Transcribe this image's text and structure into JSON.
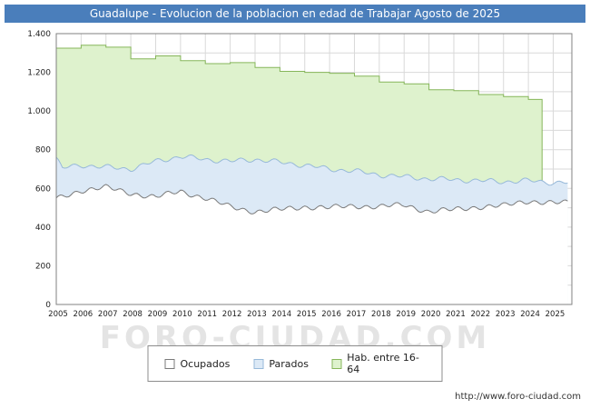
{
  "chart_data": {
    "type": "area",
    "title": "Guadalupe - Evolucion de la poblacion en edad de Trabajar Agosto de 2025",
    "x_years": [
      2005,
      2006,
      2007,
      2008,
      2009,
      2010,
      2011,
      2012,
      2013,
      2014,
      2015,
      2016,
      2017,
      2018,
      2019,
      2020,
      2021,
      2022,
      2023,
      2024,
      2025
    ],
    "x_last_month": "Agosto 2025",
    "ylim": [
      0,
      1400
    ],
    "y_tick_step": 200,
    "y_tick_labels": [
      "0",
      "200",
      "400",
      "600",
      "800",
      "1.000",
      "1.200",
      "1.400"
    ],
    "grid": true,
    "legend_position": "bottom",
    "series": [
      {
        "name": "Ocupados",
        "fill": "#ffffff",
        "stroke": "#7a7a7a",
        "stacked": false,
        "values": [
          545,
          590,
          605,
          575,
          555,
          585,
          550,
          505,
          480,
          490,
          505,
          500,
          510,
          505,
          515,
          480,
          490,
          505,
          510,
          535,
          525
        ]
      },
      {
        "name": "Parados",
        "fill": "#dce9f6",
        "stroke": "#97b9d9",
        "stacked_on": "Ocupados",
        "values": [
          155,
          130,
          105,
          125,
          185,
          180,
          200,
          235,
          270,
          245,
          215,
          200,
          180,
          165,
          145,
          170,
          155,
          135,
          125,
          105,
          105
        ]
      },
      {
        "name": "Hab. entre 16-64",
        "fill": "#def2cd",
        "stroke": "#86b65a",
        "step": "annual",
        "years": [
          2005,
          2006,
          2007,
          2008,
          2009,
          2010,
          2011,
          2012,
          2013,
          2014,
          2015,
          2016,
          2017,
          2018,
          2019,
          2020,
          2021,
          2022,
          2023,
          2024
        ],
        "values": [
          1325,
          1340,
          1330,
          1270,
          1285,
          1260,
          1245,
          1250,
          1225,
          1205,
          1200,
          1195,
          1180,
          1150,
          1140,
          1110,
          1105,
          1085,
          1075,
          1060
        ]
      }
    ]
  },
  "watermark": "FORO-CIUDAD.COM",
  "footer": {
    "url": "http://www.foro-ciudad.com"
  }
}
